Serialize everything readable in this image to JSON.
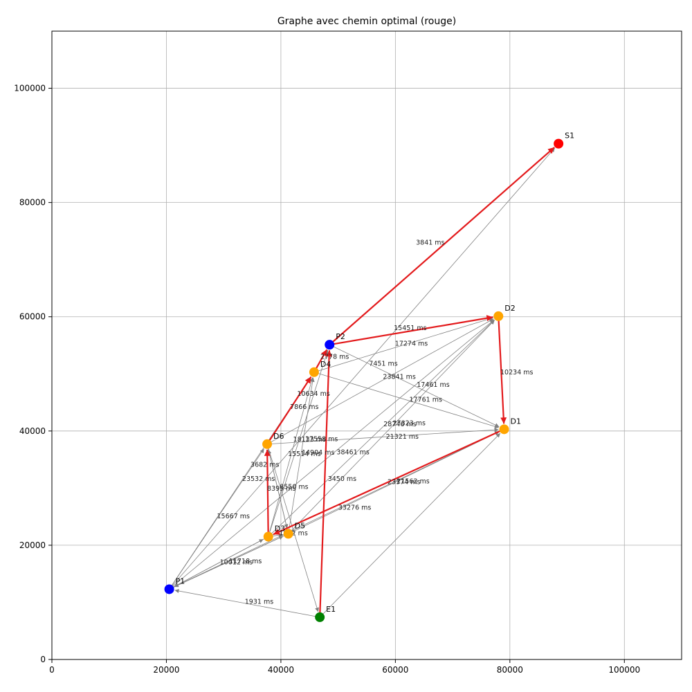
{
  "colors": {
    "optimal_edge": "#e31a1c",
    "edge": "#808080",
    "entry_node": "#008000",
    "exit_node": "#ff0000",
    "pickup_node": "#0000ff",
    "drop_node": "#ffa500"
  },
  "chart_data": {
    "type": "scatter",
    "title": "Graphe avec chemin optimal (rouge)",
    "xlabel": "",
    "ylabel": "",
    "xlim": [
      0,
      110000
    ],
    "ylim": [
      0,
      110000
    ],
    "xticks": [
      0,
      20000,
      40000,
      60000,
      80000,
      100000
    ],
    "yticks": [
      0,
      20000,
      40000,
      60000,
      80000,
      100000
    ],
    "grid": true,
    "nodes": [
      {
        "id": "E1",
        "x": 46800,
        "y": 7400,
        "color": "entry_node"
      },
      {
        "id": "P1",
        "x": 20500,
        "y": 12300,
        "color": "pickup_node"
      },
      {
        "id": "P2",
        "x": 48500,
        "y": 55100,
        "color": "pickup_node"
      },
      {
        "id": "S1",
        "x": 88500,
        "y": 90300,
        "color": "exit_node"
      },
      {
        "id": "D1",
        "x": 79000,
        "y": 40300,
        "color": "drop_node"
      },
      {
        "id": "D2",
        "x": 78000,
        "y": 60100,
        "color": "drop_node"
      },
      {
        "id": "D3",
        "x": 37800,
        "y": 21500,
        "color": "drop_node"
      },
      {
        "id": "D4",
        "x": 45800,
        "y": 50300,
        "color": "drop_node"
      },
      {
        "id": "D5",
        "x": 41300,
        "y": 22000,
        "color": "drop_node"
      },
      {
        "id": "D6",
        "x": 37600,
        "y": 37700,
        "color": "drop_node"
      }
    ],
    "edges": [
      {
        "from": "E1",
        "to": "P2",
        "optimal": true
      },
      {
        "from": "P2",
        "to": "D2",
        "optimal": true,
        "label": "15451 ms"
      },
      {
        "from": "D2",
        "to": "D1",
        "optimal": true,
        "label": "10234 ms"
      },
      {
        "from": "D1",
        "to": "D3",
        "optimal": true,
        "label": "21562 ms"
      },
      {
        "from": "D3",
        "to": "D6",
        "optimal": true,
        "label": "3682 ms"
      },
      {
        "from": "D6",
        "to": "D4",
        "optimal": true,
        "label": "10634 ms"
      },
      {
        "from": "D4",
        "to": "P2",
        "optimal": true,
        "label": "2778 ms"
      },
      {
        "from": "P2",
        "to": "S1",
        "optimal": true
      },
      {
        "from": "P1",
        "to": "S1",
        "optimal": false,
        "label": "3841 ms"
      },
      {
        "from": "E1",
        "to": "P1",
        "optimal": false,
        "label": "1931 ms"
      },
      {
        "from": "D4",
        "to": "D2",
        "optimal": false,
        "label": "17274 ms"
      },
      {
        "from": "P2",
        "to": "D1",
        "optimal": false,
        "label": "7451 ms"
      },
      {
        "from": "D6",
        "to": "D2",
        "optimal": false,
        "label": "23841 ms"
      },
      {
        "from": "D3",
        "to": "D2",
        "optimal": false,
        "label": "17461 ms"
      },
      {
        "from": "D4",
        "to": "D1",
        "optimal": false,
        "label": "17761 ms"
      },
      {
        "from": "D5",
        "to": "D2",
        "optimal": false,
        "label": "28746 ms"
      },
      {
        "from": "P1",
        "to": "D2",
        "optimal": false,
        "label": "27323 ms"
      },
      {
        "from": "D6",
        "to": "D1",
        "optimal": false,
        "label": "21321 ms"
      },
      {
        "from": "P1",
        "to": "D1",
        "optimal": false,
        "label": "23374 ms"
      },
      {
        "from": "D5",
        "to": "D1",
        "optimal": false,
        "label": "33276 ms"
      },
      {
        "from": "P1",
        "to": "D4",
        "optimal": false,
        "label": "7866 ms"
      },
      {
        "from": "D5",
        "to": "D6",
        "optimal": false,
        "label": "18133 ms"
      },
      {
        "from": "D3",
        "to": "D4",
        "optimal": false,
        "label": "17558 ms"
      },
      {
        "from": "P1",
        "to": "D5",
        "optimal": false,
        "label": "14904 ms"
      },
      {
        "from": "D3",
        "to": "P2",
        "optimal": false,
        "label": "15514 ms"
      },
      {
        "from": "E1",
        "to": "D1",
        "optimal": false,
        "label": "38461 ms"
      },
      {
        "from": "D6",
        "to": "E1",
        "optimal": false,
        "label": "3450 ms"
      },
      {
        "from": "P1",
        "to": "D6",
        "optimal": false,
        "label": "23532 ms"
      },
      {
        "from": "D5",
        "to": "D4",
        "optimal": false,
        "label": "8550 ms"
      },
      {
        "from": "D6",
        "to": "D5",
        "optimal": false,
        "label": "8395 ms"
      },
      {
        "from": "D3",
        "to": "P1",
        "optimal": false,
        "label": "15667 ms"
      },
      {
        "from": "D5",
        "to": "P1",
        "optimal": false,
        "label": "11718 ms"
      },
      {
        "from": "D3",
        "to": "D1",
        "optimal": false
      },
      {
        "from": "D3",
        "to": "D5",
        "optimal": false,
        "label": "1802 ms"
      },
      {
        "from": "P1",
        "to": "D3",
        "optimal": false,
        "label": "10012 ms"
      }
    ],
    "edge_label_text": [
      {
        "text": "3841 ms",
        "x": 66100,
        "y": 73000
      },
      {
        "text": "15451 ms",
        "x": 62600,
        "y": 58000
      },
      {
        "text": "17274 ms",
        "x": 62800,
        "y": 55300
      },
      {
        "text": "2778 ms",
        "x": 49400,
        "y": 53000
      },
      {
        "text": "7451 ms",
        "x": 57900,
        "y": 51800
      },
      {
        "text": "10234 ms",
        "x": 81200,
        "y": 50300
      },
      {
        "text": "23841 ms",
        "x": 60700,
        "y": 49500
      },
      {
        "text": "17461 ms",
        "x": 66600,
        "y": 48100
      },
      {
        "text": "10634 ms",
        "x": 45700,
        "y": 46500
      },
      {
        "text": "17761 ms",
        "x": 65300,
        "y": 45500
      },
      {
        "text": "7866 ms",
        "x": 44100,
        "y": 44200
      },
      {
        "text": "28746 ms",
        "x": 60800,
        "y": 41200
      },
      {
        "text": "27323 ms",
        "x": 62400,
        "y": 41400
      },
      {
        "text": "21321 ms",
        "x": 61200,
        "y": 39000
      },
      {
        "text": "18133 ms",
        "x": 45000,
        "y": 38500
      },
      {
        "text": "17558 ms",
        "x": 47100,
        "y": 38600
      },
      {
        "text": "14904 ms",
        "x": 46500,
        "y": 36200
      },
      {
        "text": "15514 ms",
        "x": 44100,
        "y": 36000
      },
      {
        "text": "38461 ms",
        "x": 52600,
        "y": 36300
      },
      {
        "text": "3682 ms",
        "x": 37200,
        "y": 34100
      },
      {
        "text": "23532 ms",
        "x": 36100,
        "y": 31600
      },
      {
        "text": "3450 ms",
        "x": 50700,
        "y": 31600
      },
      {
        "text": "23374 ms",
        "x": 61500,
        "y": 31100
      },
      {
        "text": "21562 ms",
        "x": 63100,
        "y": 31200
      },
      {
        "text": "8550 ms",
        "x": 42300,
        "y": 30200
      },
      {
        "text": "8395 ms",
        "x": 40100,
        "y": 29900
      },
      {
        "text": "33276 ms",
        "x": 52900,
        "y": 26600
      },
      {
        "text": "15667 ms",
        "x": 31700,
        "y": 25100
      },
      {
        "text": "1802 ms",
        "x": 42200,
        "y": 22100
      },
      {
        "text": "11718 ms",
        "x": 33800,
        "y": 17200
      },
      {
        "text": "10012 ms",
        "x": 32200,
        "y": 17000
      },
      {
        "text": "1931 ms",
        "x": 36200,
        "y": 10100
      }
    ]
  }
}
